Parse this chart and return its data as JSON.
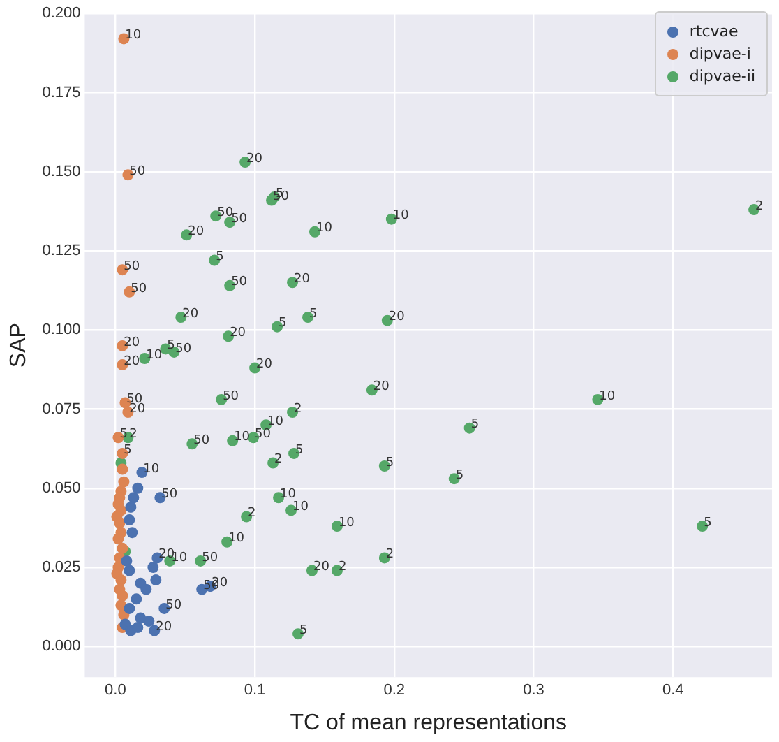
{
  "chart_data": {
    "type": "scatter",
    "xlabel": "TC of mean representations",
    "ylabel": "SAP",
    "xlim": [
      -0.022,
      0.471
    ],
    "ylim": [
      -0.0097,
      0.2
    ],
    "xticks": [
      {
        "value": 0,
        "label": "0.0"
      },
      {
        "value": 0.1,
        "label": "0.1"
      },
      {
        "value": 0.2,
        "label": "0.2"
      },
      {
        "value": 0.3,
        "label": "0.3"
      },
      {
        "value": 0.4,
        "label": "0.4"
      }
    ],
    "yticks": [
      {
        "value": 0,
        "label": "0.000"
      },
      {
        "value": 0.025,
        "label": "0.025"
      },
      {
        "value": 0.05,
        "label": "0.050"
      },
      {
        "value": 0.075,
        "label": "0.075"
      },
      {
        "value": 0.1,
        "label": "0.100"
      },
      {
        "value": 0.125,
        "label": "0.125"
      },
      {
        "value": 0.15,
        "label": "0.150"
      },
      {
        "value": 0.175,
        "label": "0.175"
      },
      {
        "value": 0.2,
        "label": "0.200"
      }
    ],
    "grid": true,
    "legend": "top right",
    "marker": "circle",
    "series": [
      {
        "name": "rtcvae",
        "color": "#4c72b0",
        "x": [
          0.019,
          0.032,
          0.016,
          0.013,
          0.011,
          0.01,
          0.012,
          0.03,
          0.027,
          0.029,
          0.008,
          0.01,
          0.018,
          0.062,
          0.068,
          0.035,
          0.022,
          0.015,
          0.01,
          0.024,
          0.028,
          0.018,
          0.007,
          0.011,
          0.016
        ],
        "values": [
          0.055,
          0.047,
          0.05,
          0.047,
          0.044,
          0.04,
          0.036,
          0.028,
          0.025,
          0.021,
          0.027,
          0.024,
          0.02,
          0.018,
          0.019,
          0.012,
          0.018,
          0.015,
          0.012,
          0.008,
          0.005,
          0.009,
          0.007,
          0.005,
          0.006
        ]
      },
      {
        "name": "dipvae-i",
        "color": "#dd8452",
        "x": [
          0.006,
          0.009,
          0.005,
          0.01,
          0.005,
          0.005,
          0.007,
          0.009,
          0.002,
          0.005,
          0.005,
          0.006,
          0.004,
          0.003,
          0.002,
          0.004,
          0.001,
          0.003,
          0.004,
          0.002,
          0.005,
          0.003,
          0.002,
          0.001,
          0.004,
          0.003,
          0.005,
          0.004,
          0.006,
          0.005
        ],
        "values": [
          0.192,
          0.149,
          0.119,
          0.112,
          0.095,
          0.089,
          0.077,
          0.074,
          0.066,
          0.061,
          0.056,
          0.052,
          0.049,
          0.047,
          0.045,
          0.043,
          0.041,
          0.039,
          0.036,
          0.034,
          0.031,
          0.028,
          0.025,
          0.023,
          0.021,
          0.018,
          0.016,
          0.013,
          0.01,
          0.006
        ]
      },
      {
        "name": "dipvae-ii",
        "color": "#55a868",
        "x": [
          0.093,
          0.112,
          0.114,
          0.072,
          0.082,
          0.051,
          0.143,
          0.198,
          0.458,
          0.071,
          0.082,
          0.127,
          0.138,
          0.047,
          0.081,
          0.116,
          0.195,
          0.1,
          0.021,
          0.042,
          0.036,
          0.076,
          0.184,
          0.346,
          0.127,
          0.108,
          0.254,
          0.099,
          0.084,
          0.055,
          0.128,
          0.113,
          0.193,
          0.243,
          0.004,
          0.009,
          0.117,
          0.126,
          0.094,
          0.159,
          0.421,
          0.08,
          0.141,
          0.159,
          0.193,
          0.131,
          0.061,
          0.039,
          0.007
        ],
        "values": [
          0.153,
          0.141,
          0.142,
          0.136,
          0.134,
          0.13,
          0.131,
          0.135,
          0.138,
          0.122,
          0.114,
          0.115,
          0.104,
          0.104,
          0.098,
          0.101,
          0.103,
          0.088,
          0.091,
          0.093,
          0.094,
          0.078,
          0.081,
          0.078,
          0.074,
          0.07,
          0.069,
          0.066,
          0.065,
          0.064,
          0.061,
          0.058,
          0.057,
          0.053,
          0.058,
          0.066,
          0.047,
          0.043,
          0.041,
          0.038,
          0.038,
          0.033,
          0.024,
          0.024,
          0.028,
          0.004,
          0.027,
          0.027,
          0.03
        ]
      }
    ],
    "annotations": [
      {
        "text": "10",
        "x": 0.019,
        "y": 0.055
      },
      {
        "text": "50",
        "x": 0.032,
        "y": 0.047
      },
      {
        "text": "20",
        "x": 0.03,
        "y": 0.028
      },
      {
        "text": "50",
        "x": 0.062,
        "y": 0.018
      },
      {
        "text": "20",
        "x": 0.068,
        "y": 0.019
      },
      {
        "text": "50",
        "x": 0.035,
        "y": 0.012
      },
      {
        "text": "20",
        "x": 0.028,
        "y": 0.005
      },
      {
        "text": "10",
        "x": 0.006,
        "y": 0.192
      },
      {
        "text": "50",
        "x": 0.009,
        "y": 0.149
      },
      {
        "text": "50",
        "x": 0.005,
        "y": 0.119
      },
      {
        "text": "50",
        "x": 0.01,
        "y": 0.112
      },
      {
        "text": "20",
        "x": 0.005,
        "y": 0.095
      },
      {
        "text": "20",
        "x": 0.005,
        "y": 0.089
      },
      {
        "text": "50",
        "x": 0.007,
        "y": 0.077
      },
      {
        "text": "20",
        "x": 0.009,
        "y": 0.074
      },
      {
        "text": "5",
        "x": 0.002,
        "y": 0.066
      },
      {
        "text": "5",
        "x": 0.005,
        "y": 0.061
      },
      {
        "text": "20",
        "x": 0.093,
        "y": 0.153
      },
      {
        "text": "50",
        "x": 0.112,
        "y": 0.141
      },
      {
        "text": "5",
        "x": 0.114,
        "y": 0.142
      },
      {
        "text": "50",
        "x": 0.072,
        "y": 0.136
      },
      {
        "text": "50",
        "x": 0.082,
        "y": 0.134
      },
      {
        "text": "20",
        "x": 0.051,
        "y": 0.13
      },
      {
        "text": "10",
        "x": 0.143,
        "y": 0.131
      },
      {
        "text": "10",
        "x": 0.198,
        "y": 0.135
      },
      {
        "text": "2",
        "x": 0.458,
        "y": 0.138
      },
      {
        "text": "5",
        "x": 0.071,
        "y": 0.122
      },
      {
        "text": "50",
        "x": 0.082,
        "y": 0.114
      },
      {
        "text": "20",
        "x": 0.127,
        "y": 0.115
      },
      {
        "text": "5",
        "x": 0.138,
        "y": 0.104
      },
      {
        "text": "20",
        "x": 0.047,
        "y": 0.104
      },
      {
        "text": "20",
        "x": 0.081,
        "y": 0.098
      },
      {
        "text": "5",
        "x": 0.116,
        "y": 0.101
      },
      {
        "text": "20",
        "x": 0.195,
        "y": 0.103
      },
      {
        "text": "20",
        "x": 0.1,
        "y": 0.088
      },
      {
        "text": "10",
        "x": 0.021,
        "y": 0.091
      },
      {
        "text": "50",
        "x": 0.042,
        "y": 0.093
      },
      {
        "text": "5",
        "x": 0.036,
        "y": 0.094
      },
      {
        "text": "50",
        "x": 0.076,
        "y": 0.078
      },
      {
        "text": "20",
        "x": 0.184,
        "y": 0.081
      },
      {
        "text": "10",
        "x": 0.346,
        "y": 0.078
      },
      {
        "text": "2",
        "x": 0.127,
        "y": 0.074
      },
      {
        "text": "10",
        "x": 0.108,
        "y": 0.07
      },
      {
        "text": "5",
        "x": 0.254,
        "y": 0.069
      },
      {
        "text": "50",
        "x": 0.099,
        "y": 0.066
      },
      {
        "text": "10",
        "x": 0.084,
        "y": 0.065
      },
      {
        "text": "50",
        "x": 0.055,
        "y": 0.064
      },
      {
        "text": "5",
        "x": 0.128,
        "y": 0.061
      },
      {
        "text": "2",
        "x": 0.113,
        "y": 0.058
      },
      {
        "text": "5",
        "x": 0.193,
        "y": 0.057
      },
      {
        "text": "5",
        "x": 0.243,
        "y": 0.053
      },
      {
        "text": "2",
        "x": 0.009,
        "y": 0.066
      },
      {
        "text": "10",
        "x": 0.117,
        "y": 0.047
      },
      {
        "text": "10",
        "x": 0.126,
        "y": 0.043
      },
      {
        "text": "2",
        "x": 0.094,
        "y": 0.041
      },
      {
        "text": "10",
        "x": 0.159,
        "y": 0.038
      },
      {
        "text": "5",
        "x": 0.421,
        "y": 0.038
      },
      {
        "text": "10",
        "x": 0.08,
        "y": 0.033
      },
      {
        "text": "20",
        "x": 0.141,
        "y": 0.024
      },
      {
        "text": "2",
        "x": 0.159,
        "y": 0.024
      },
      {
        "text": "2",
        "x": 0.193,
        "y": 0.028
      },
      {
        "text": "5",
        "x": 0.131,
        "y": 0.004
      },
      {
        "text": "50",
        "x": 0.061,
        "y": 0.027
      },
      {
        "text": "10",
        "x": 0.039,
        "y": 0.027
      }
    ]
  }
}
